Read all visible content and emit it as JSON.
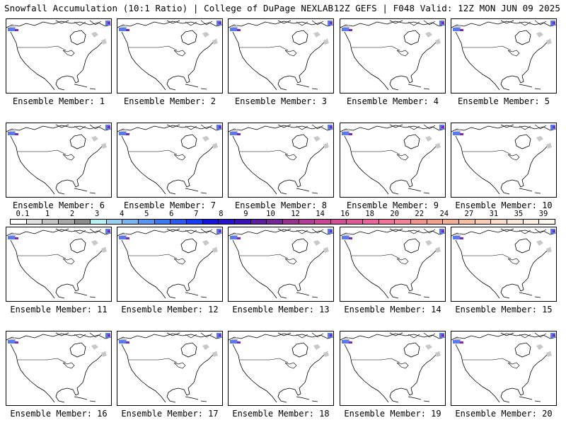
{
  "header": {
    "left": "Snowfall Accumulation (10:1 Ratio) | College of DuPage NEXLAB",
    "right": "12Z GEFS | F048 Valid: 12Z MON JUN 09 2025"
  },
  "members": [
    {
      "label": "Ensemble Member: 1"
    },
    {
      "label": "Ensemble Member: 2"
    },
    {
      "label": "Ensemble Member: 3"
    },
    {
      "label": "Ensemble Member: 4"
    },
    {
      "label": "Ensemble Member: 5"
    },
    {
      "label": "Ensemble Member: 6"
    },
    {
      "label": "Ensemble Member: 7"
    },
    {
      "label": "Ensemble Member: 8"
    },
    {
      "label": "Ensemble Member: 9"
    },
    {
      "label": "Ensemble Member: 10"
    },
    {
      "label": "Ensemble Member: 11"
    },
    {
      "label": "Ensemble Member: 12"
    },
    {
      "label": "Ensemble Member: 13"
    },
    {
      "label": "Ensemble Member: 14"
    },
    {
      "label": "Ensemble Member: 15"
    },
    {
      "label": "Ensemble Member: 16"
    },
    {
      "label": "Ensemble Member: 17"
    },
    {
      "label": "Ensemble Member: 18"
    },
    {
      "label": "Ensemble Member: 19"
    },
    {
      "label": "Ensemble Member: 20"
    }
  ],
  "colorbar": {
    "labels": [
      "0.1",
      "1",
      "2",
      "3",
      "4",
      "5",
      "6",
      "7",
      "8",
      "9",
      "10",
      "12",
      "14",
      "16",
      "18",
      "20",
      "22",
      "24",
      "27",
      "31",
      "35",
      "39"
    ],
    "colors": [
      "#ffffff",
      "#e0e0e0",
      "#c4c4c4",
      "#a8a8a8",
      "#8c8c8c",
      "#b7f0f0",
      "#96d2f0",
      "#78b4f0",
      "#5a96f0",
      "#3c78f0",
      "#2a5af0",
      "#183cf0",
      "#1414dc",
      "#2814c8",
      "#3c14b4",
      "#5a1ea0",
      "#782896",
      "#96328c",
      "#b43c96",
      "#c84696",
      "#d25096",
      "#dc5a96",
      "#e6649b",
      "#f0739b",
      "#f0829b",
      "#f0918c",
      "#f0a08c",
      "#f0af96",
      "#f5bea5",
      "#f5cdb4",
      "#fadcc8",
      "#fae6d7",
      "#fff0e6",
      "#fff8f0"
    ]
  },
  "map_colors": {
    "coast": "#000000",
    "snow_light": "#c8c8c8",
    "snow_blue": "#5a78f0",
    "snow_purple": "#7828b4"
  }
}
